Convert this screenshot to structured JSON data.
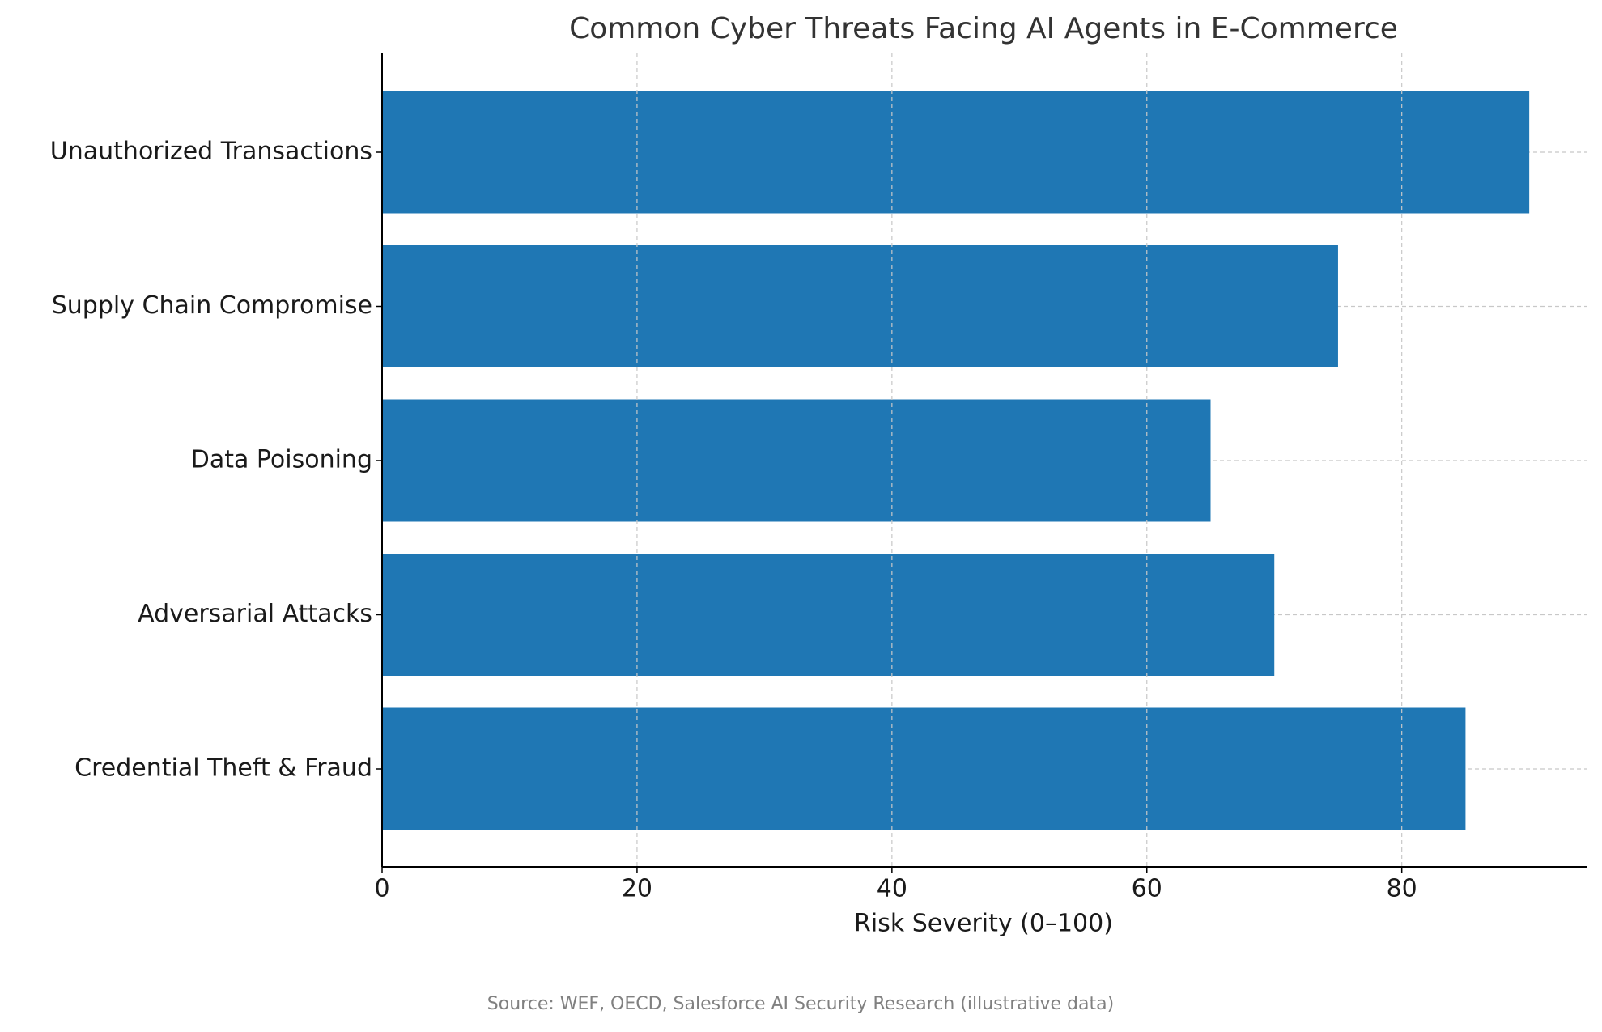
{
  "chart_data": {
    "type": "barh",
    "title": "Common Cyber Threats Facing AI Agents in E-Commerce",
    "categories": [
      "Unauthorized Transactions",
      "Supply Chain Compromise",
      "Data Poisoning",
      "Adversarial Attacks",
      "Credential Theft & Fraud"
    ],
    "values": [
      90,
      75,
      65,
      70,
      85
    ],
    "color": "#1f77b4",
    "xlabel": "Risk Severity (0–100)",
    "xlim": [
      0,
      94.5
    ],
    "xticks": [
      0,
      20,
      40,
      60,
      80
    ],
    "grid": true,
    "source": "Source: WEF, OECD, Salesforce AI Security Research (illustrative data)"
  }
}
